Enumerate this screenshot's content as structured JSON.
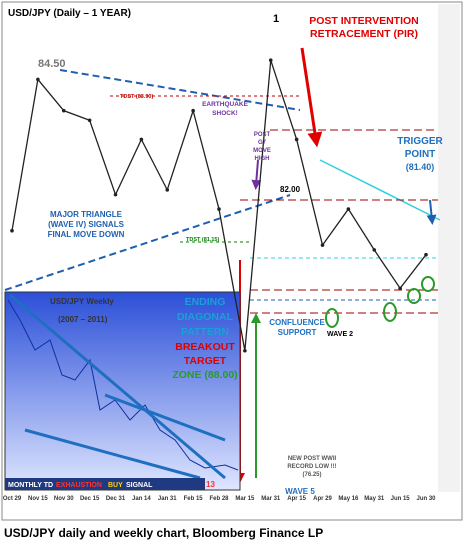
{
  "chart_data": {
    "type": "line",
    "title": "USD/JPY (Daily – 1 YEAR)",
    "x": [
      "Oct 29",
      "Nov 15",
      "Nov 30",
      "Dec 15",
      "Dec 31",
      "Jan 14",
      "Jan 31",
      "Feb 15",
      "Feb 28",
      "Mar 15",
      "Mar 31",
      "Apr 15",
      "Apr 29",
      "May 16",
      "May 31",
      "Jun 15",
      "Jun 30"
    ],
    "series": [
      {
        "name": "USD/JPY",
        "color": "#222222",
        "values": [
          81.1,
          84.25,
          83.6,
          83.4,
          81.85,
          83.0,
          81.95,
          83.6,
          81.55,
          78.6,
          84.65,
          83.0,
          80.8,
          81.55,
          80.7,
          79.9,
          80.6
        ]
      }
    ],
    "ylim": [
      75.7,
      85.8
    ],
    "annotations": [
      {
        "text": "1",
        "color": "#000000"
      },
      {
        "text": "POST INTERVENTION",
        "color": "#e00000"
      },
      {
        "text": "RETRACEMENT (PIR)",
        "color": "#e00000"
      },
      {
        "text": "84.50",
        "color": "#777777"
      },
      {
        "text": "TDST (83.90)",
        "color": "#c00000"
      },
      {
        "text": "EARTHQUAKE",
        "color": "#7030a0"
      },
      {
        "text": "SHOCK!",
        "color": "#7030a0"
      },
      {
        "text": "POST",
        "color": "#7030a0"
      },
      {
        "text": "G7",
        "color": "#7030a0"
      },
      {
        "text": "MOVE",
        "color": "#7030a0"
      },
      {
        "text": "HIGH",
        "color": "#7030a0"
      },
      {
        "text": "82.00",
        "color": "#000000"
      },
      {
        "text": "TRIGGER",
        "color": "#1f6fc0"
      },
      {
        "text": "POINT",
        "color": "#1f6fc0"
      },
      {
        "text": "(81.40)",
        "color": "#1f6fc0"
      },
      {
        "text": "MAJOR TRIANGLE",
        "color": "#1f5fb0"
      },
      {
        "text": "(WAVE IV) SIGNALS",
        "color": "#1f5fb0"
      },
      {
        "text": "FINAL MOVE DOWN",
        "color": "#1f5fb0"
      },
      {
        "text": "TDST (81.15)",
        "color": "#008000"
      },
      {
        "text": "USD/JPY Weekly",
        "color": "#333333"
      },
      {
        "text": "(2007 – 2011)",
        "color": "#333333"
      },
      {
        "text": "ENDING",
        "color": "#1aa0d8"
      },
      {
        "text": "DIAGONAL",
        "color": "#1aa0d8"
      },
      {
        "text": "PATTERN",
        "color": "#1aa0d8"
      },
      {
        "text": "BREAKOUT",
        "color": "#e00000"
      },
      {
        "text": "TARGET",
        "color": "#e00000"
      },
      {
        "text": "ZONE (88.00)",
        "color": "#2a9a2a"
      },
      {
        "text": "CONFLUENCE",
        "color": "#1f6fc0"
      },
      {
        "text": "SUPPORT",
        "color": "#1f6fc0"
      },
      {
        "text": "WAVE 2",
        "color": "#000000"
      },
      {
        "text": "NEW POST WWII",
        "color": "#555555"
      },
      {
        "text": "RECORD LOW !!!",
        "color": "#555555"
      },
      {
        "text": "(76.25)",
        "color": "#555555"
      },
      {
        "text": "WAVE 5",
        "color": "#1f6fc0"
      },
      {
        "text": "MONTHLY TD",
        "color": "#ffffff"
      },
      {
        "text": "EXHAUSTION",
        "color": "#ff3030"
      },
      {
        "text": "BUY",
        "color": "#ffd000"
      },
      {
        "text": "SIGNAL",
        "color": "#ffffff"
      },
      {
        "text": "13",
        "color": "#ff3030"
      }
    ]
  },
  "caption": "USD/JPY daily and weekly chart, Bloomberg Finance LP"
}
